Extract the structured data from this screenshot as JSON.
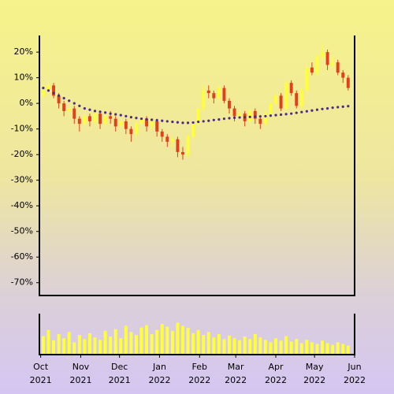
{
  "chart_data": {
    "type": "candlestick",
    "x": [
      2,
      6,
      10,
      14,
      18,
      22,
      26,
      30,
      34,
      38,
      42,
      46,
      50,
      54,
      58,
      62,
      66,
      70,
      74,
      78,
      82,
      86,
      90,
      94,
      98,
      102,
      106,
      110,
      114,
      118,
      122,
      126,
      130,
      134,
      138,
      142,
      146,
      150,
      154,
      158,
      162,
      166,
      170,
      174,
      178,
      182,
      186,
      190,
      194,
      198,
      202,
      206,
      210,
      214,
      218,
      222,
      226,
      230,
      234,
      238
    ],
    "open": [
      3,
      5,
      7,
      3,
      0,
      -3,
      -2,
      -6,
      -8,
      -5,
      -7,
      -4,
      -8,
      -5,
      -6,
      -9,
      -7,
      -10,
      -12,
      -8,
      -6,
      -9,
      -7,
      -11,
      -13,
      -15,
      -14,
      -19,
      -20,
      -13,
      -8,
      -2,
      5,
      4,
      2,
      6,
      1,
      -2,
      -5,
      -4,
      -7,
      -3,
      -6,
      -8,
      -4,
      0,
      3,
      -2,
      8,
      4,
      -1,
      5,
      14,
      12,
      18,
      20,
      15,
      16,
      12,
      10
    ],
    "high": [
      7,
      9,
      8,
      4,
      1,
      -1,
      -1,
      -5,
      -4,
      -4,
      -3,
      -3,
      -4,
      -3,
      -5,
      -6,
      -6,
      -9,
      -7,
      -5,
      -5,
      -6,
      -6,
      -10,
      -12,
      -13,
      -13,
      -17,
      -12,
      -7,
      -1,
      7,
      7,
      5,
      7,
      7,
      2,
      -1,
      -3,
      -3,
      -2,
      -2,
      -5,
      -3,
      1,
      4,
      4,
      9,
      9,
      5,
      6,
      15,
      16,
      19,
      23,
      21,
      18,
      17,
      13,
      11
    ],
    "low": [
      2,
      4,
      2,
      -2,
      -5,
      -5,
      -8,
      -11,
      -9,
      -9,
      -8,
      -10,
      -9,
      -8,
      -11,
      -10,
      -12,
      -15,
      -13,
      -9,
      -11,
      -10,
      -13,
      -15,
      -17,
      -17,
      -21,
      -22,
      -21,
      -14,
      -9,
      -3,
      2,
      0,
      1,
      0,
      -4,
      -7,
      -6,
      -9,
      -8,
      -8,
      -10,
      -9,
      -5,
      -1,
      -3,
      -3,
      3,
      -2,
      -2,
      4,
      11,
      11,
      17,
      13,
      14,
      11,
      8,
      5
    ],
    "close": [
      5,
      7,
      3,
      0,
      -3,
      -2,
      -6,
      -8,
      -5,
      -7,
      -4,
      -8,
      -5,
      -6,
      -9,
      -7,
      -10,
      -12,
      -8,
      -6,
      -9,
      -7,
      -11,
      -13,
      -15,
      -14,
      -19,
      -20,
      -13,
      -8,
      -2,
      5,
      4,
      2,
      6,
      1,
      -2,
      -5,
      -4,
      -7,
      -3,
      -6,
      -8,
      -4,
      0,
      3,
      -2,
      8,
      4,
      -1,
      5,
      14,
      12,
      18,
      20,
      15,
      16,
      12,
      10,
      6
    ],
    "moving_average": [
      6,
      5,
      4,
      3,
      2,
      1,
      0,
      -1,
      -2,
      -2.5,
      -3,
      -3.3,
      -3.6,
      -4,
      -4.3,
      -4.6,
      -5,
      -5.4,
      -5.7,
      -6,
      -6.2,
      -6.4,
      -6.6,
      -6.8,
      -7,
      -7.2,
      -7.4,
      -7.6,
      -7.6,
      -7.5,
      -7.2,
      -7,
      -6.8,
      -6.5,
      -6.3,
      -6,
      -5.8,
      -5.6,
      -5.5,
      -5.4,
      -5.3,
      -5.2,
      -5.1,
      -5,
      -4.8,
      -4.6,
      -4.4,
      -4.2,
      -4,
      -3.7,
      -3.4,
      -3.1,
      -2.8,
      -2.5,
      -2.2,
      -2,
      -1.7,
      -1.5,
      -1.3,
      -1.1
    ],
    "volume": [
      45,
      60,
      35,
      50,
      40,
      55,
      30,
      48,
      38,
      52,
      42,
      36,
      58,
      44,
      62,
      40,
      70,
      55,
      48,
      66,
      72,
      50,
      60,
      75,
      68,
      58,
      78,
      70,
      65,
      52,
      60,
      48,
      55,
      42,
      50,
      38,
      46,
      40,
      35,
      44,
      38,
      50,
      42,
      36,
      30,
      40,
      34,
      45,
      32,
      38,
      28,
      36,
      30,
      26,
      34,
      28,
      24,
      30,
      26,
      22
    ],
    "up_color": "#ffff3a",
    "down_color": "#e0401a",
    "ma_color": "#4b2a8a",
    "volume_color": "#ffff3a",
    "xlim": [
      -1,
      243
    ],
    "xticks": [
      {
        "value": 0,
        "label": [
          "Oct",
          "2021"
        ]
      },
      {
        "value": 31,
        "label": [
          "Nov",
          "2021"
        ]
      },
      {
        "value": 61,
        "label": [
          "Dec",
          "2021"
        ]
      },
      {
        "value": 92,
        "label": [
          "Jan",
          "2022"
        ]
      },
      {
        "value": 123,
        "label": [
          "Feb",
          "2022"
        ]
      },
      {
        "value": 151,
        "label": [
          "Mar",
          "2022"
        ]
      },
      {
        "value": 182,
        "label": [
          "Apr",
          "2022"
        ]
      },
      {
        "value": 212,
        "label": [
          "May",
          "2022"
        ]
      },
      {
        "value": 243,
        "label": [
          "Jun",
          "2022"
        ]
      }
    ],
    "ylim": [
      -75,
      26.5
    ],
    "yticks": [
      {
        "value": 20,
        "label": "20%"
      },
      {
        "value": 10,
        "label": "10%"
      },
      {
        "value": 0,
        "label": "0%"
      },
      {
        "value": -10,
        "label": "-10%"
      },
      {
        "value": -20,
        "label": "-20%"
      },
      {
        "value": -30,
        "label": "-30%"
      },
      {
        "value": -40,
        "label": "-40%"
      },
      {
        "value": -50,
        "label": "-50%"
      },
      {
        "value": -60,
        "label": "-60%"
      },
      {
        "value": -70,
        "label": "-70%"
      }
    ],
    "volume_ylim": [
      0,
      100
    ]
  }
}
